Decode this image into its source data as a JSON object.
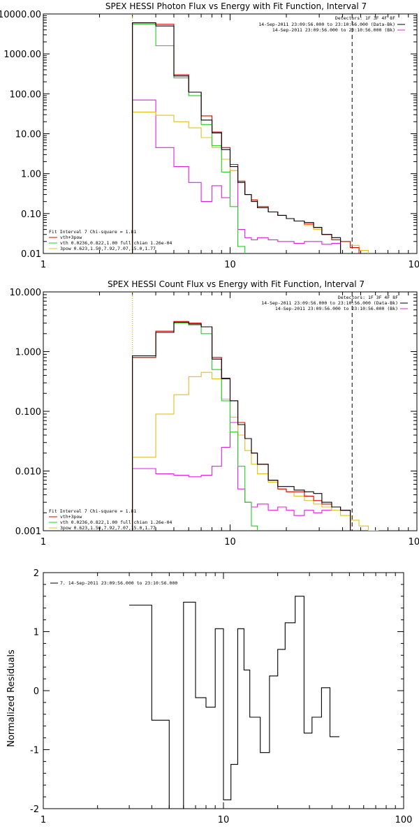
{
  "chart_data": [
    {
      "type": "line",
      "title": "SPEX HESSI Photon Flux vs Energy with Fit Function, Interval 7",
      "xlabel": "",
      "ylabel": "",
      "xscale": "log",
      "yscale": "log",
      "xlim": [
        1,
        100
      ],
      "ylim": [
        0.01,
        10000
      ],
      "x_tick_labels": [
        "1",
        "10",
        "100"
      ],
      "y_tick_labels": [
        "0.01",
        "0.10",
        "1.00",
        "10.00",
        "100.00",
        "1000.00",
        "10000.00"
      ],
      "fit_start_x": 3.0,
      "fit_end_x": 45.0,
      "legend_top": [
        "Detectors: 1F 3F 4F 8F",
        "14-Sep-2011 23:09:56.000 to 23:10:56.000 (Data-Bk)",
        "14-Sep-2011 23:09:56.000 to 23:10:56.000 (Bk)"
      ],
      "legend_bottom": [
        "Fit Interval 7   Chi-square = 1.81",
        "vth+3pow",
        "vth 0.0236,0.822,1.00  full chian 1.26e-04",
        "3pow 0.623,1.50,7.92,7.07,15.0,1.77"
      ],
      "colors": {
        "data": "#000000",
        "background": "#e020e0",
        "total": "#e00000",
        "thermal": "#20d020",
        "power": "#e0c020",
        "markers": "#000000",
        "fit_start": "#e0a000"
      },
      "edges": [
        3.0,
        4.0,
        5.0,
        6.0,
        7.0,
        8.0,
        9.0,
        10.0,
        11.0,
        12.0,
        13.0,
        14.0,
        16.0,
        18.0,
        20.0,
        22.0,
        25.0,
        28.0,
        31.0,
        35.0,
        39.0,
        44.0,
        49.0,
        55.0,
        62.0,
        70.0,
        80.0,
        90.0,
        100.0
      ],
      "series": [
        {
          "role": "data",
          "values": [
            6000,
            5000,
            280,
            110,
            22,
            10.5,
            4,
            1.5,
            0.6,
            0.3,
            0.2,
            0.14,
            0.11,
            0.09,
            0.075,
            0.065,
            0.06,
            0.045,
            0.03,
            0.025,
            null,
            null,
            null,
            null,
            null,
            null,
            null,
            null
          ]
        },
        {
          "role": "background",
          "values": [
            70,
            4.5,
            1.5,
            0.6,
            0.2,
            0.5,
            0.25,
            1.2,
            0.04,
            0.025,
            0.022,
            0.025,
            0.022,
            0.02,
            0.02,
            0.018,
            0.02,
            0.02,
            0.017,
            0.018,
            null,
            null,
            null,
            null,
            null,
            null,
            null,
            null
          ]
        },
        {
          "role": "total",
          "values": [
            6000,
            5500,
            300,
            110,
            28,
            11,
            4.5,
            1.7,
            0.65,
            0.3,
            0.22,
            0.15,
            0.11,
            0.09,
            0.075,
            0.065,
            0.055,
            0.045,
            0.03,
            0.022,
            0.02,
            0.014,
            null,
            null,
            null,
            null,
            null,
            null
          ]
        },
        {
          "role": "thermal",
          "values": [
            5500,
            1600,
            250,
            90,
            17,
            5,
            1.1,
            0.15,
            0.015,
            0.003,
            null,
            null,
            null,
            null,
            null,
            null,
            null,
            null,
            null,
            null,
            null,
            null,
            null,
            null,
            null,
            null,
            null,
            null
          ]
        },
        {
          "role": "power",
          "values": [
            35,
            29,
            20,
            14,
            8,
            4.5,
            2.3,
            1.2,
            0.65,
            0.3,
            0.22,
            0.15,
            0.11,
            0.09,
            0.075,
            0.065,
            0.05,
            0.04,
            0.03,
            0.022,
            0.02,
            0.016,
            0.012,
            0.008,
            null,
            null,
            null,
            null
          ]
        }
      ]
    },
    {
      "type": "line",
      "title": "SPEX HESSI Count Flux vs Energy with Fit Function, Interval 7",
      "xlabel": "",
      "ylabel": "",
      "xscale": "log",
      "yscale": "log",
      "xlim": [
        1,
        100
      ],
      "ylim": [
        0.001,
        10
      ],
      "x_tick_labels": [
        "1",
        "10",
        "100"
      ],
      "y_tick_labels": [
        "0.001",
        "0.010",
        "0.100",
        "1.000",
        "10.000"
      ],
      "fit_start_x": 3.0,
      "fit_end_x": 45.0,
      "legend_top": [
        "Detectors: 1F 3F 4F 8F",
        "14-Sep-2011 23:09:56.000 to 23:10:56.000 (Data-Bk)",
        "14-Sep-2011 23:09:56.000 to 23:10:56.000 (Bk)"
      ],
      "legend_bottom": [
        "Fit Interval 7   Chi-square = 1.81",
        "vth+3pow",
        "vth 0.0236,0.822,1.00  full chian 1.26e-04",
        "3pow 0.623,1.50,7.92,7.07,15.0,1.77"
      ],
      "colors": {
        "data": "#000000",
        "background": "#e020e0",
        "total": "#e00000",
        "thermal": "#20d020",
        "power": "#e0c020",
        "markers": "#000000",
        "fit_start": "#e0a000"
      },
      "edges": [
        3.0,
        4.0,
        5.0,
        6.0,
        7.0,
        8.0,
        9.0,
        10.0,
        11.0,
        12.0,
        13.0,
        14.0,
        16.0,
        18.0,
        20.0,
        22.0,
        25.0,
        28.0,
        31.0,
        35.0,
        39.0,
        44.0,
        49.0,
        55.0,
        62.0,
        70.0,
        80.0,
        90.0,
        100.0
      ],
      "series": [
        {
          "role": "data",
          "values": [
            0.85,
            2.1,
            3.1,
            2.9,
            2.6,
            0.75,
            0.35,
            0.15,
            0.06,
            0.035,
            0.02,
            0.013,
            0.007,
            0.0055,
            0.0055,
            0.0048,
            0.0045,
            0.0042,
            0.003,
            0.0025,
            0.0022,
            null,
            null,
            null,
            null,
            null,
            null,
            null
          ]
        },
        {
          "role": "background",
          "values": [
            0.011,
            0.009,
            0.0085,
            0.008,
            0.0085,
            0.012,
            0.025,
            0.065,
            0.005,
            0.003,
            0.0025,
            0.0028,
            0.0022,
            0.0025,
            0.0022,
            0.0018,
            0.0022,
            0.002,
            0.0022,
            0.0025,
            0.0022,
            null,
            null,
            null,
            null,
            null,
            null,
            null
          ]
        },
        {
          "role": "total",
          "values": [
            0.8,
            2.2,
            3.2,
            3.0,
            2.6,
            0.8,
            0.36,
            0.15,
            0.065,
            0.035,
            0.02,
            0.013,
            0.007,
            0.005,
            0.0045,
            0.0045,
            0.0038,
            0.0032,
            0.0028,
            0.0025,
            0.0022,
            null,
            null,
            null,
            null,
            null,
            null,
            null
          ]
        },
        {
          "role": "thermal",
          "values": [
            0.8,
            2.1,
            3.0,
            2.8,
            2.0,
            0.5,
            0.15,
            0.045,
            0.012,
            0.003,
            0.0012,
            null,
            null,
            null,
            null,
            null,
            null,
            null,
            null,
            null,
            null,
            null,
            null,
            null,
            null,
            null,
            null,
            null
          ]
        },
        {
          "role": "power",
          "values": [
            0.017,
            0.09,
            0.19,
            0.38,
            0.45,
            0.35,
            0.16,
            0.08,
            0.04,
            0.022,
            0.013,
            0.009,
            0.0065,
            0.005,
            0.0045,
            0.0038,
            0.0032,
            0.0028,
            0.0025,
            0.0022,
            0.0018,
            0.0015,
            0.0012,
            0.001,
            null,
            null,
            null,
            null
          ]
        }
      ]
    },
    {
      "type": "line",
      "title": "",
      "xlabel": "",
      "ylabel": "Normalized Residuals",
      "xscale": "log",
      "yscale": "linear",
      "xlim": [
        1,
        100
      ],
      "ylim": [
        -2,
        2
      ],
      "x_tick_labels": [
        "1",
        "10",
        "100"
      ],
      "y_tick_labels": [
        "-2",
        "-1",
        "0",
        "1",
        "2"
      ],
      "legend_top": [
        "7. 14-Sep-2011 23:09:56.000 to 23:10:56.000"
      ],
      "colors": {
        "data": "#000000"
      },
      "edges": [
        3.0,
        4.0,
        5.0,
        6.0,
        7.0,
        8.0,
        9.0,
        10.0,
        11.0,
        12.0,
        13.0,
        14.0,
        16.0,
        18.0,
        20.0,
        22.0,
        25.0,
        28.0,
        31.0,
        35.0,
        39.0,
        44.0
      ],
      "series": [
        {
          "role": "data",
          "values": [
            1.45,
            -0.5,
            -2.0,
            1.5,
            -0.12,
            -0.28,
            1.05,
            -1.85,
            -1.25,
            1.05,
            0.35,
            -0.45,
            -1.05,
            0.25,
            0.7,
            1.15,
            1.6,
            -0.72,
            -0.45,
            0.05,
            -0.78,
            -0.6
          ]
        }
      ]
    }
  ]
}
